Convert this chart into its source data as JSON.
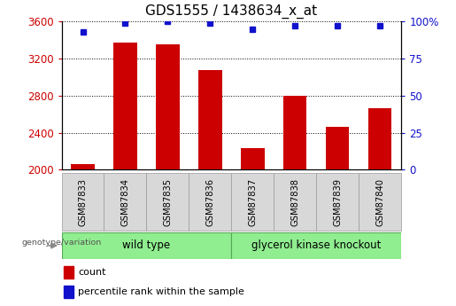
{
  "title": "GDS1555 / 1438634_x_at",
  "samples": [
    "GSM87833",
    "GSM87834",
    "GSM87835",
    "GSM87836",
    "GSM87837",
    "GSM87838",
    "GSM87839",
    "GSM87840"
  ],
  "counts": [
    2060,
    3370,
    3350,
    3080,
    2230,
    2800,
    2460,
    2660
  ],
  "percentile_ranks": [
    93,
    99,
    100,
    99,
    95,
    97,
    97,
    97
  ],
  "groups": [
    {
      "label": "wild type",
      "color": "#90ee90"
    },
    {
      "label": "glycerol kinase knockout",
      "color": "#90ee90"
    }
  ],
  "group_boundary": 4,
  "ylim_left": [
    2000,
    3600
  ],
  "ylim_right": [
    0,
    100
  ],
  "yticks_left": [
    2000,
    2400,
    2800,
    3200,
    3600
  ],
  "yticks_right": [
    0,
    25,
    50,
    75,
    100
  ],
  "bar_color": "#cc0000",
  "dot_color": "#1111cc",
  "bar_width": 0.55,
  "background_color": "#ffffff",
  "plot_bg_color": "#ffffff",
  "genotype_label": "genotype/variation",
  "legend_count_label": "count",
  "legend_percentile_label": "percentile rank within the sample",
  "left_ylabel_color": "#cc0000",
  "right_ylabel_color": "#1111cc",
  "grid_color": "#000000",
  "title_fontsize": 11,
  "tick_label_bg": "#d8d8d8"
}
